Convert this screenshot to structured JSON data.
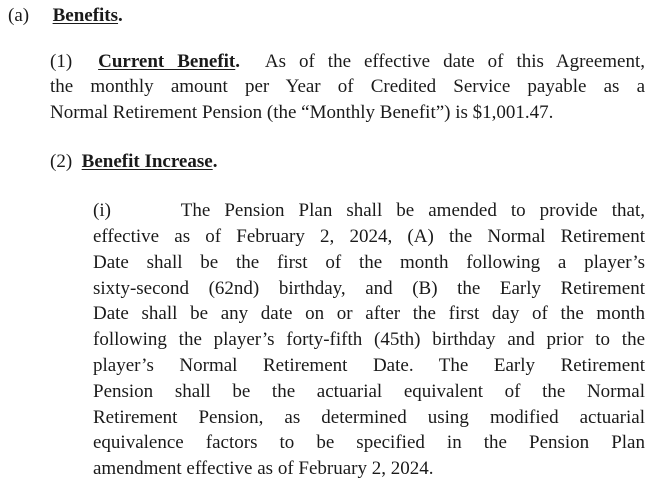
{
  "section_a": {
    "label": "(a)",
    "heading": "Benefits",
    "period": "."
  },
  "para1": {
    "label": "(1)",
    "heading": "Current Benefit",
    "period": ".",
    "first_line_rest": "As of the effective date of this Agreement,",
    "lines": [
      "the monthly amount per Year of Credited Service payable as a",
      "Normal Retirement Pension (the “Monthly Benefit”) is $1,001.47."
    ]
  },
  "para2": {
    "label": "(2)",
    "heading": "Benefit Increase",
    "period": "."
  },
  "para_i": {
    "label": "(i)",
    "first_line_rest": "The Pension Plan shall be amended to provide that,",
    "lines": [
      "effective as of February 2, 2024, (A) the Normal Retirement",
      "Date shall be the first of the month following a player’s",
      "sixty-second (62nd) birthday, and (B) the Early Retirement",
      "Date shall be any date on or after the first day of the month",
      "following the player’s forty-fifth (45th) birthday and prior to the",
      "player’s Normal Retirement Date. The Early Retirement",
      "Pension shall be the actuarial equivalent of the Normal",
      "Retirement Pension, as determined using modified actuarial",
      "equivalence factors to be specified in the Pension Plan",
      "amendment effective as of February 2, 2024."
    ]
  }
}
